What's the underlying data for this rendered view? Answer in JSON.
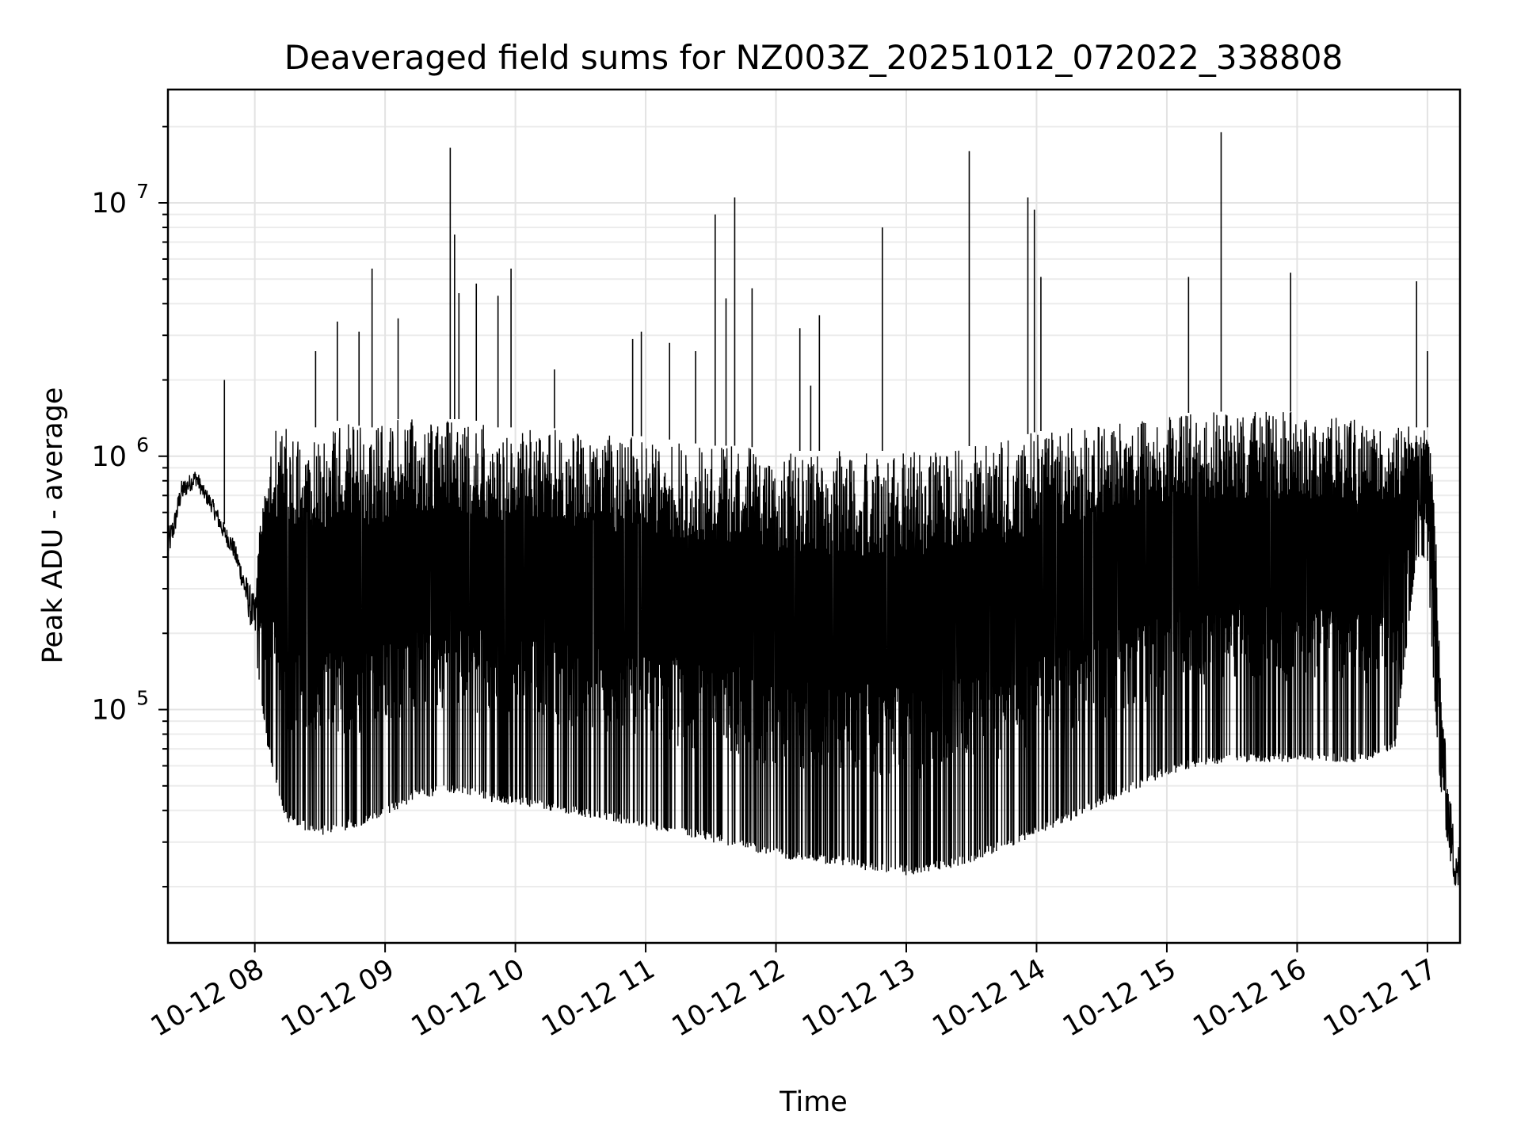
{
  "chart_data": {
    "type": "line",
    "title": "Deaveraged field sums for NZ003Z_20251012_072022_338808",
    "xlabel": "Time",
    "ylabel": "Peak ADU - average",
    "x_scale": "time",
    "y_scale": "log",
    "xlim": [
      "2025-10-12 07:20",
      "2025-10-12 17:15"
    ],
    "ylim": [
      12000,
      28000000
    ],
    "grid": true,
    "grid_minor": true,
    "line_color": "#000000",
    "x_ticks": [
      {
        "value": "2025-10-12 08:00",
        "label": "10-12 08"
      },
      {
        "value": "2025-10-12 09:00",
        "label": "10-12 09"
      },
      {
        "value": "2025-10-12 10:00",
        "label": "10-12 10"
      },
      {
        "value": "2025-10-12 11:00",
        "label": "10-12 11"
      },
      {
        "value": "2025-10-12 12:00",
        "label": "10-12 12"
      },
      {
        "value": "2025-10-12 13:00",
        "label": "10-12 13"
      },
      {
        "value": "2025-10-12 14:00",
        "label": "10-12 14"
      },
      {
        "value": "2025-10-12 15:00",
        "label": "10-12 15"
      },
      {
        "value": "2025-10-12 16:00",
        "label": "10-12 16"
      },
      {
        "value": "2025-10-12 17:00",
        "label": "10-12 17"
      }
    ],
    "y_ticks": [
      {
        "value": 100000,
        "base": "10",
        "exp": "5"
      },
      {
        "value": 1000000,
        "base": "10",
        "exp": "6"
      },
      {
        "value": 10000000,
        "base": "10",
        "exp": "7"
      }
    ],
    "series": [
      {
        "x": [
          "2025-10-12 07:20",
          "2025-10-12 07:23",
          "2025-10-12 07:26",
          "2025-10-12 07:30",
          "2025-10-12 07:33",
          "2025-10-12 07:36",
          "2025-10-12 07:40",
          "2025-10-12 07:43",
          "2025-10-12 07:46",
          "2025-10-12 07:50",
          "2025-10-12 07:53",
          "2025-10-12 07:56",
          "2025-10-12 08:00",
          "2025-10-12 08:03",
          "2025-10-12 08:06",
          "2025-10-12 08:10",
          "2025-10-12 08:13",
          "2025-10-12 08:16",
          "2025-10-12 08:20",
          "2025-10-12 08:25",
          "2025-10-12 08:30",
          "2025-10-12 08:35",
          "2025-10-12 08:40",
          "2025-10-12 08:45",
          "2025-10-12 08:50",
          "2025-10-12 08:55",
          "2025-10-12 09:00",
          "2025-10-12 09:05",
          "2025-10-12 09:10",
          "2025-10-12 09:15",
          "2025-10-12 09:20",
          "2025-10-12 09:25",
          "2025-10-12 09:30",
          "2025-10-12 09:35",
          "2025-10-12 09:40",
          "2025-10-12 09:45",
          "2025-10-12 09:50",
          "2025-10-12 09:55",
          "2025-10-12 10:00",
          "2025-10-12 10:15",
          "2025-10-12 10:30",
          "2025-10-12 10:45",
          "2025-10-12 11:00",
          "2025-10-12 11:15",
          "2025-10-12 11:30",
          "2025-10-12 11:45",
          "2025-10-12 12:00",
          "2025-10-12 12:15",
          "2025-10-12 12:30",
          "2025-10-12 12:45",
          "2025-10-12 13:00",
          "2025-10-12 13:15",
          "2025-10-12 13:30",
          "2025-10-12 13:45",
          "2025-10-12 14:00",
          "2025-10-12 14:15",
          "2025-10-12 14:30",
          "2025-10-12 14:45",
          "2025-10-12 15:00",
          "2025-10-12 15:15",
          "2025-10-12 15:30",
          "2025-10-12 15:45",
          "2025-10-12 16:00",
          "2025-10-12 16:15",
          "2025-10-12 16:30",
          "2025-10-12 16:45",
          "2025-10-12 16:55",
          "2025-10-12 17:00",
          "2025-10-12 17:03",
          "2025-10-12 17:06",
          "2025-10-12 17:09",
          "2025-10-12 17:12",
          "2025-10-12 17:15"
        ],
        "y_high": [
          520000,
          600000,
          800000,
          850000,
          900000,
          780000,
          700000,
          620000,
          540000,
          480000,
          400000,
          340000,
          280000,
          700000,
          1200000,
          1300000,
          1300000,
          1300000,
          1300000,
          1300000,
          1300000,
          1350000,
          1400000,
          1350000,
          1300000,
          1300000,
          1350000,
          1400000,
          1400000,
          1400000,
          1400000,
          1400000,
          1400000,
          1400000,
          1400000,
          1350000,
          1300000,
          1300000,
          1300000,
          1300000,
          1250000,
          1200000,
          1200000,
          1150000,
          1100000,
          1100000,
          1050000,
          1050000,
          1050000,
          1050000,
          1050000,
          1050000,
          1100000,
          1150000,
          1250000,
          1300000,
          1350000,
          1400000,
          1450000,
          1500000,
          1500000,
          1500000,
          1500000,
          1450000,
          1400000,
          1350000,
          1300000,
          1300000,
          900000,
          130000,
          60000,
          35000,
          30000
        ],
        "y_low": [
          380000,
          480000,
          650000,
          720000,
          760000,
          680000,
          600000,
          520000,
          460000,
          400000,
          330000,
          250000,
          180000,
          110000,
          70000,
          50000,
          40000,
          35000,
          34000,
          33000,
          32000,
          32000,
          33000,
          34000,
          35000,
          36000,
          38000,
          40000,
          42000,
          45000,
          45000,
          46000,
          47000,
          46000,
          45000,
          44000,
          43000,
          42000,
          42000,
          40000,
          38000,
          36000,
          34000,
          32000,
          30000,
          28000,
          26000,
          25000,
          24000,
          23000,
          22000,
          23000,
          25000,
          28000,
          32000,
          36000,
          42000,
          48000,
          55000,
          60000,
          62000,
          62000,
          62000,
          62000,
          62000,
          70000,
          400000,
          400000,
          120000,
          50000,
          30000,
          20000,
          18000
        ],
        "spikes": [
          {
            "x": "2025-10-12 07:46",
            "y": 2000000
          },
          {
            "x": "2025-10-12 08:28",
            "y": 2600000
          },
          {
            "x": "2025-10-12 08:38",
            "y": 3400000
          },
          {
            "x": "2025-10-12 08:48",
            "y": 3100000
          },
          {
            "x": "2025-10-12 08:54",
            "y": 5500000
          },
          {
            "x": "2025-10-12 09:06",
            "y": 3500000
          },
          {
            "x": "2025-10-12 09:30",
            "y": 16500000
          },
          {
            "x": "2025-10-12 09:32",
            "y": 7500000
          },
          {
            "x": "2025-10-12 09:34",
            "y": 4400000
          },
          {
            "x": "2025-10-12 09:42",
            "y": 4800000
          },
          {
            "x": "2025-10-12 09:52",
            "y": 4300000
          },
          {
            "x": "2025-10-12 09:58",
            "y": 5500000
          },
          {
            "x": "2025-10-12 10:18",
            "y": 2200000
          },
          {
            "x": "2025-10-12 10:54",
            "y": 2900000
          },
          {
            "x": "2025-10-12 10:58",
            "y": 3100000
          },
          {
            "x": "2025-10-12 11:11",
            "y": 2800000
          },
          {
            "x": "2025-10-12 11:23",
            "y": 2600000
          },
          {
            "x": "2025-10-12 11:32",
            "y": 9000000
          },
          {
            "x": "2025-10-12 11:37",
            "y": 4200000
          },
          {
            "x": "2025-10-12 11:41",
            "y": 10500000
          },
          {
            "x": "2025-10-12 11:49",
            "y": 4600000
          },
          {
            "x": "2025-10-12 12:11",
            "y": 3200000
          },
          {
            "x": "2025-10-12 12:16",
            "y": 1900000
          },
          {
            "x": "2025-10-12 12:20",
            "y": 3600000
          },
          {
            "x": "2025-10-12 12:49",
            "y": 8000000
          },
          {
            "x": "2025-10-12 13:29",
            "y": 16000000
          },
          {
            "x": "2025-10-12 13:56",
            "y": 10500000
          },
          {
            "x": "2025-10-12 13:59",
            "y": 9400000
          },
          {
            "x": "2025-10-12 14:02",
            "y": 5100000
          },
          {
            "x": "2025-10-12 15:10",
            "y": 5100000
          },
          {
            "x": "2025-10-12 15:25",
            "y": 19000000
          },
          {
            "x": "2025-10-12 15:57",
            "y": 5300000
          },
          {
            "x": "2025-10-12 16:55",
            "y": 4900000
          },
          {
            "x": "2025-10-12 17:00",
            "y": 2600000
          }
        ]
      }
    ]
  }
}
